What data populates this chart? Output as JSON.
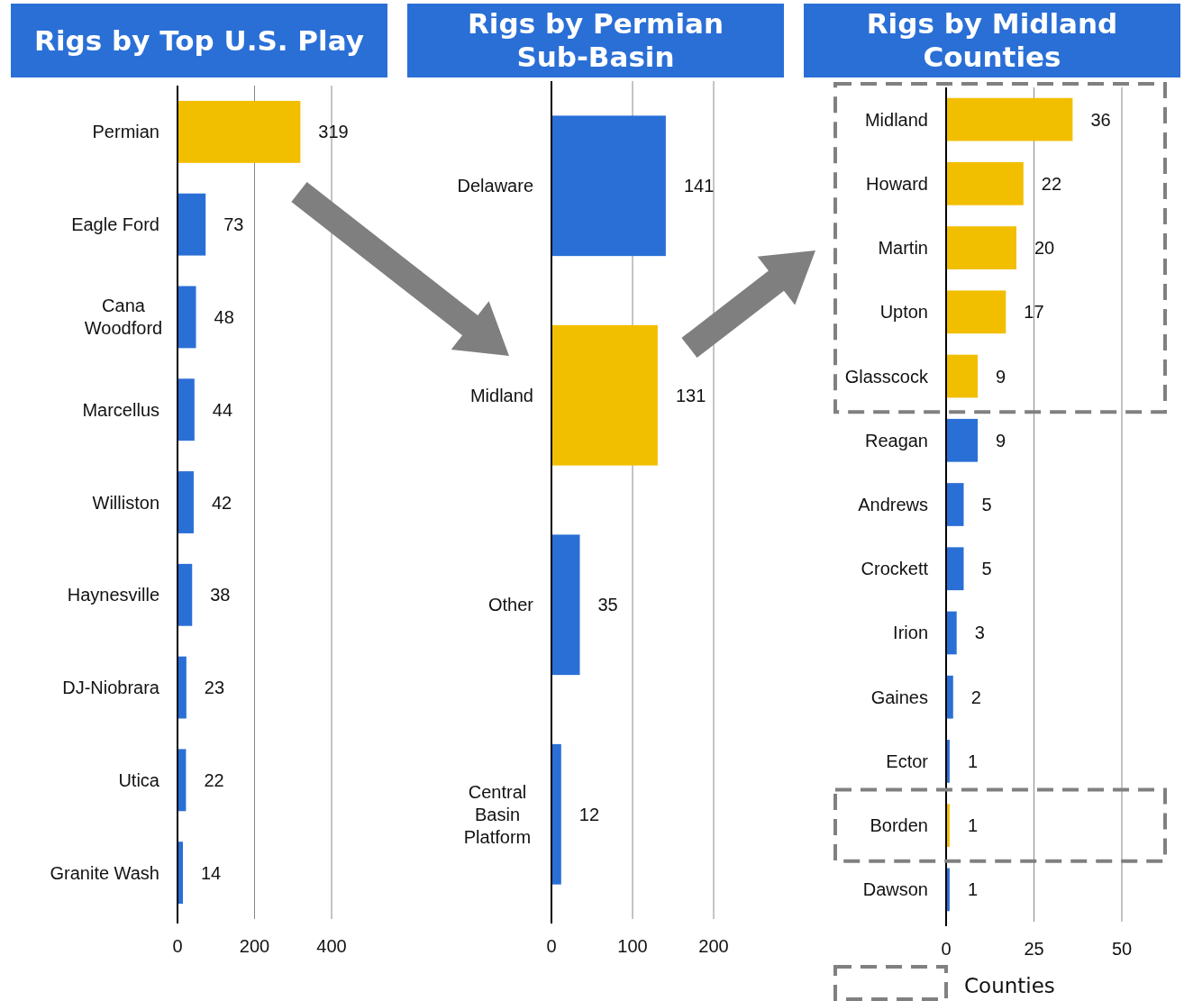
{
  "chart_data": [
    {
      "type": "bar",
      "orientation": "horizontal",
      "title": "Rigs by Top U.S. Play",
      "categories": [
        "Permian",
        "Eagle Ford",
        "Cana Woodford",
        "Marcellus",
        "Williston",
        "Haynesville",
        "DJ-Niobrara",
        "Utica",
        "Granite Wash"
      ],
      "values": [
        319,
        73,
        48,
        44,
        42,
        38,
        23,
        22,
        14
      ],
      "colors": [
        "#f2be00",
        "#2a6fd6",
        "#2a6fd6",
        "#2a6fd6",
        "#2a6fd6",
        "#2a6fd6",
        "#2a6fd6",
        "#2a6fd6",
        "#2a6fd6"
      ],
      "xlim": [
        0,
        400
      ],
      "xticks": [
        0,
        200,
        400
      ],
      "grid": "x",
      "data_labels": true
    },
    {
      "type": "bar",
      "orientation": "horizontal",
      "title": "Rigs by Permian Sub-Basin",
      "categories": [
        "Delaware",
        "Midland",
        "Other",
        "Central Basin Platform"
      ],
      "values": [
        141,
        131,
        35,
        12
      ],
      "colors": [
        "#2a6fd6",
        "#f2be00",
        "#2a6fd6",
        "#2a6fd6"
      ],
      "xlim": [
        0,
        200
      ],
      "xticks": [
        0,
        100,
        200
      ],
      "grid": "x",
      "data_labels": true
    },
    {
      "type": "bar",
      "orientation": "horizontal",
      "title": "Rigs by Midland Counties",
      "categories": [
        "Midland",
        "Howard",
        "Martin",
        "Upton",
        "Glasscock",
        "Reagan",
        "Andrews",
        "Crockett",
        "Irion",
        "Gaines",
        "Ector",
        "Borden",
        "Dawson"
      ],
      "values": [
        36,
        22,
        20,
        17,
        9,
        9,
        5,
        5,
        3,
        2,
        1,
        1,
        1
      ],
      "colors": [
        "#f2be00",
        "#f2be00",
        "#f2be00",
        "#f2be00",
        "#f2be00",
        "#2a6fd6",
        "#2a6fd6",
        "#2a6fd6",
        "#2a6fd6",
        "#2a6fd6",
        "#2a6fd6",
        "#f2be00",
        "#2a6fd6"
      ],
      "xlim": [
        0,
        50
      ],
      "xticks": [
        0,
        25,
        50
      ],
      "grid": "x",
      "data_labels": true,
      "annotations": [
        "Counties"
      ]
    }
  ]
}
